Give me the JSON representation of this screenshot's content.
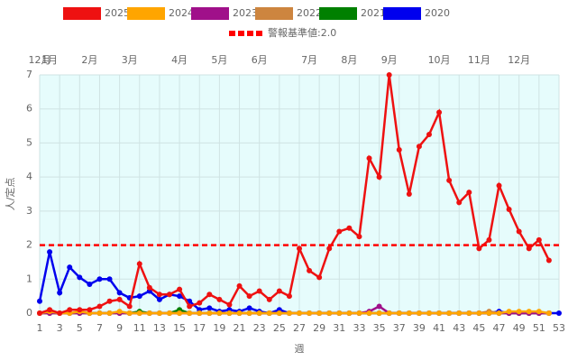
{
  "chart_data": {
    "type": "line",
    "x_label": "週",
    "y_label": "人/定点",
    "x": [
      1,
      2,
      3,
      4,
      5,
      6,
      7,
      8,
      9,
      10,
      11,
      12,
      13,
      14,
      15,
      16,
      17,
      18,
      19,
      20,
      21,
      22,
      23,
      24,
      25,
      26,
      27,
      28,
      29,
      30,
      31,
      32,
      33,
      34,
      35,
      36,
      37,
      38,
      39,
      40,
      41,
      42,
      43,
      44,
      45,
      46,
      47,
      48,
      49,
      50,
      51,
      52,
      53
    ],
    "xlim": [
      1,
      53
    ],
    "xticks": [
      1,
      3,
      5,
      7,
      9,
      11,
      13,
      15,
      17,
      19,
      21,
      23,
      25,
      27,
      29,
      31,
      33,
      35,
      37,
      39,
      41,
      43,
      45,
      47,
      49,
      51,
      53
    ],
    "ylim": [
      0,
      7
    ],
    "yticks": [
      0,
      1,
      2,
      3,
      4,
      5,
      6,
      7
    ],
    "grid": true,
    "month_ticks": [
      {
        "value": 1,
        "label": "12月"
      },
      {
        "value": 2,
        "label": "1月"
      },
      {
        "value": 6,
        "label": "2月"
      },
      {
        "value": 10,
        "label": "3月"
      },
      {
        "value": 15,
        "label": "4月"
      },
      {
        "value": 19,
        "label": "5月"
      },
      {
        "value": 23,
        "label": "6月"
      },
      {
        "value": 28,
        "label": "7月"
      },
      {
        "value": 32,
        "label": "8月"
      },
      {
        "value": 36,
        "label": "9月"
      },
      {
        "value": 41,
        "label": "10月"
      },
      {
        "value": 45,
        "label": "11月"
      },
      {
        "value": 49,
        "label": "12月"
      }
    ],
    "threshold": {
      "value": 2.0,
      "label": "警報基準値:2.0",
      "color": "#ff0000"
    },
    "series": [
      {
        "name": "2025",
        "color": "#ee1111",
        "values": [
          0,
          0.1,
          0,
          0.1,
          0.1,
          0.1,
          0.2,
          0.35,
          0.4,
          0.2,
          1.45,
          0.75,
          0.55,
          0.55,
          0.7,
          0.2,
          0.3,
          0.55,
          0.4,
          0.25,
          0.8,
          0.5,
          0.65,
          0.4,
          0.65,
          0.5,
          1.9,
          1.25,
          1.05,
          1.9,
          2.4,
          2.5,
          2.25,
          4.55,
          4.0,
          7.0,
          4.8,
          3.5,
          4.9,
          5.25,
          5.9,
          3.9,
          3.25,
          3.55,
          1.9,
          2.15,
          3.75,
          3.05,
          2.4,
          1.9,
          2.15,
          1.55,
          null
        ]
      },
      {
        "name": "2024",
        "color": "#ffa500",
        "values": [
          0,
          0.05,
          0,
          0,
          0.05,
          0,
          0,
          0,
          0.05,
          0,
          0,
          0,
          0,
          0,
          0,
          0,
          0,
          0,
          0,
          0,
          0,
          0,
          0,
          0,
          0,
          0,
          0,
          0,
          0,
          0,
          0,
          0,
          0,
          0,
          0,
          0,
          0,
          0,
          0,
          0,
          0,
          0,
          0,
          0,
          0,
          0,
          0,
          0.05,
          0.05,
          0.05,
          0.05,
          0,
          null
        ]
      },
      {
        "name": "2023",
        "color": "#a0108a",
        "values": [
          0,
          0,
          0,
          0,
          0,
          0,
          0,
          0,
          0,
          0,
          0,
          0,
          0,
          0,
          0,
          0,
          0,
          0,
          0,
          0,
          0,
          0,
          0,
          0,
          0,
          0,
          0,
          0,
          0,
          0,
          0,
          0,
          0,
          0.05,
          0.2,
          0,
          0,
          0,
          0,
          0,
          0,
          0,
          0,
          0,
          0,
          0,
          0,
          0,
          0,
          0,
          0,
          0,
          null
        ]
      },
      {
        "name": "2022",
        "color": "#cd853f",
        "values": [
          0,
          0,
          0,
          0,
          0,
          0,
          0,
          0,
          0,
          0,
          0,
          0,
          0,
          0,
          0,
          0,
          0,
          0,
          0,
          0,
          0,
          0,
          0,
          0,
          0,
          0,
          0,
          0,
          0,
          0,
          0,
          0,
          0,
          0,
          0,
          0,
          0,
          0,
          0,
          0,
          0,
          0,
          0,
          0,
          0,
          0.05,
          0,
          0,
          0,
          0,
          0,
          0,
          null
        ]
      },
      {
        "name": "2021",
        "color": "#008000",
        "values": [
          0,
          0,
          0,
          0,
          0,
          0,
          0,
          0,
          0,
          0,
          0.05,
          0,
          0,
          0,
          0.1,
          0,
          0,
          0,
          0,
          0,
          0,
          0,
          0,
          0,
          0,
          0,
          0,
          0,
          0,
          0,
          0,
          0,
          0,
          0,
          0,
          0,
          0,
          0,
          0,
          0,
          0,
          0,
          0,
          0,
          0,
          0,
          0,
          0,
          0,
          0,
          0,
          0,
          null
        ]
      },
      {
        "name": "2020",
        "color": "#0000ee",
        "values": [
          0.35,
          1.8,
          0.6,
          1.35,
          1.05,
          0.85,
          1.0,
          1.0,
          0.6,
          0.45,
          0.5,
          0.65,
          0.4,
          0.55,
          0.5,
          0.35,
          0.1,
          0.15,
          0.05,
          0.1,
          0.05,
          0.15,
          0.05,
          0,
          0.1,
          0,
          0,
          0,
          0,
          0,
          0,
          0,
          0,
          0,
          0,
          0,
          0,
          0,
          0,
          0,
          0,
          0,
          0,
          0,
          0,
          0,
          0.05,
          0,
          0,
          0,
          0,
          0,
          0
        ]
      }
    ]
  }
}
